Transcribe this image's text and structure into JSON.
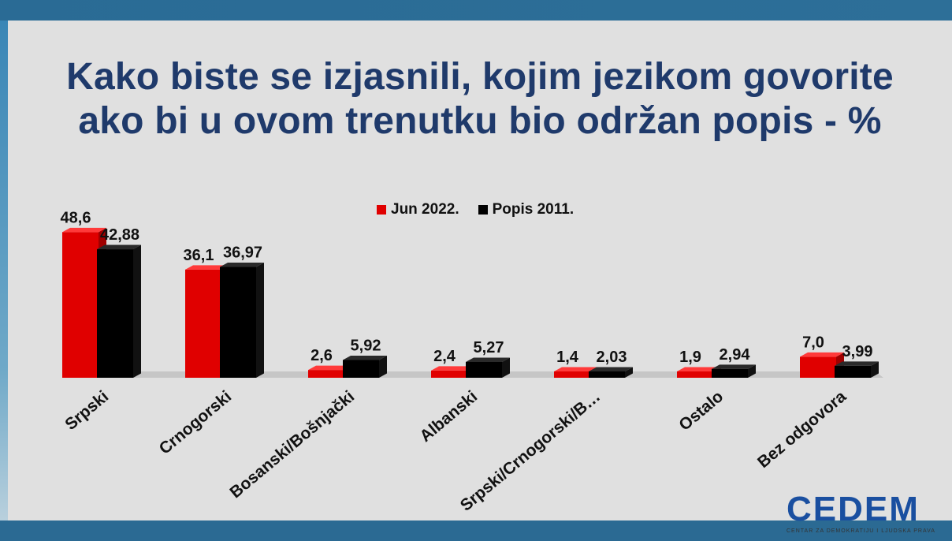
{
  "title_line1": "Kako biste se izjasnili, kojim jezikom govorite",
  "title_line2": "ako bi u ovom trenutku bio održan popis - %",
  "logo": {
    "text": "CEDEM",
    "subtitle": "CENTAR ZA DEMOKRATIJU I LJUDSKA PRAVA"
  },
  "colors": {
    "jun2022": "#e00000",
    "popis2011": "#000000",
    "title": "#1f3a6b"
  },
  "chart_data": {
    "type": "bar",
    "title": "Kako biste se izjasnili, kojim jezikom govorite ako bi u ovom trenutku bio održan popis - %",
    "categories": [
      "Srpski",
      "Crnogorski",
      "Bosanski/Bošnjački",
      "Albanski",
      "Srpski/Crnogorski/B…",
      "Ostalo",
      "Bez odgovora"
    ],
    "series": [
      {
        "name": "Jun 2022.",
        "values": [
          48.6,
          36.1,
          2.6,
          2.4,
          1.4,
          1.9,
          7.0
        ],
        "labels": [
          "48,6",
          "36,1",
          "2,6",
          "2,4",
          "1,4",
          "1,9",
          "7,0"
        ],
        "color": "#e00000"
      },
      {
        "name": "Popis 2011.",
        "values": [
          42.88,
          36.97,
          5.92,
          5.27,
          2.03,
          2.94,
          3.99
        ],
        "labels": [
          "42,88",
          "36,97",
          "5,92",
          "5,27",
          "2,03",
          "2,94",
          "3,99"
        ],
        "color": "#000000"
      }
    ],
    "legend_position": "top-center",
    "grid": false,
    "ylim": [
      0,
      50
    ]
  }
}
